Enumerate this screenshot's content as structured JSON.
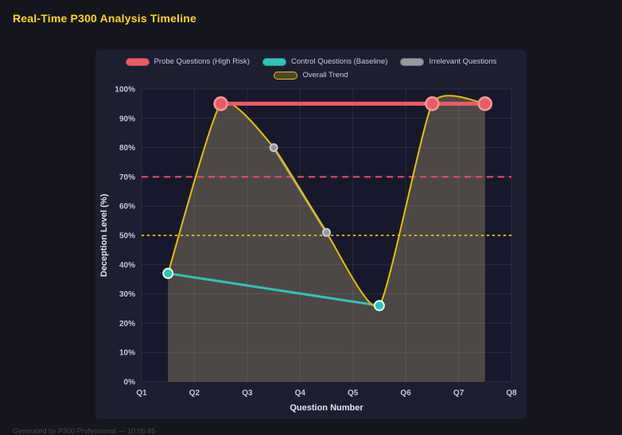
{
  "page": {
    "title": "Real-Time P300 Analysis Timeline",
    "title_color": "#ffd60a",
    "footer": "Generated by P300 Professional — 10:05:45"
  },
  "chart_data": {
    "type": "line",
    "title": "Real-Time P300 Analysis Timeline",
    "xlabel": "Question Number",
    "ylabel": "Deception Level (%)",
    "x_tick_labels": [
      "Q1",
      "Q2",
      "Q3",
      "Q4",
      "Q5",
      "Q6",
      "Q7",
      "Q8"
    ],
    "x_range": [
      1,
      8
    ],
    "ylim": [
      0,
      100
    ],
    "y_ticks": [
      0,
      10,
      20,
      30,
      40,
      50,
      60,
      70,
      80,
      90,
      100
    ],
    "y_tick_suffix": "%",
    "grid": true,
    "legend_position": "top-center",
    "plot_bg": "#18182c",
    "grid_color": "rgba(255,255,255,0.08)",
    "tick_color": "#c6c6d2",
    "axis_title_color": "#e3e3ec",
    "series": [
      {
        "id": "probe",
        "name": "Probe Questions (High Risk)",
        "color": "#e85c66",
        "line_width": 5,
        "marker_radius": 8,
        "marker_stroke": "#f29a9a",
        "smooth": false,
        "points": [
          [
            2.5,
            95
          ],
          [
            6.5,
            95
          ],
          [
            7.5,
            95
          ]
        ],
        "swatch": {
          "fill": "#e85c66",
          "border": "#b8434c"
        }
      },
      {
        "id": "control",
        "name": "Control Questions (Baseline)",
        "color": "#2ec4b6",
        "line_width": 3,
        "marker_radius": 6,
        "marker_stroke": "#e6fbf8",
        "smooth": false,
        "points": [
          [
            1.5,
            37
          ],
          [
            5.5,
            26
          ]
        ],
        "swatch": {
          "fill": "#2ec4b6",
          "border": "#1e9a8f"
        }
      },
      {
        "id": "irrelevant",
        "name": "Irrelevant Questions",
        "color": "#97979f",
        "line_width": 3,
        "marker_radius": 4.5,
        "marker_stroke": "#c9c9d2",
        "smooth": false,
        "points": [
          [
            3.5,
            80
          ],
          [
            4.5,
            51
          ]
        ],
        "swatch": {
          "fill": "#97979f",
          "border": "#70707a"
        }
      },
      {
        "id": "trend",
        "name": "Overall Trend",
        "color": "#e5c100",
        "line_width": 2,
        "marker_radius": 0,
        "marker_stroke": "none",
        "smooth": true,
        "fill": "rgba(222,205,140,0.27)",
        "points": [
          [
            1.5,
            37
          ],
          [
            2.5,
            95
          ],
          [
            3.5,
            80
          ],
          [
            4.5,
            51
          ],
          [
            5.5,
            26
          ],
          [
            6.5,
            95
          ],
          [
            7.5,
            95
          ]
        ],
        "swatch": {
          "fill": "#4a4630",
          "border": "#e5c100"
        }
      }
    ],
    "thresholds": [
      {
        "label": "high-risk-threshold-line",
        "value": 70,
        "color": "#ef4b6e",
        "dash": "8 6"
      },
      {
        "label": "baseline-threshold-line",
        "value": 50,
        "color": "#d8b400",
        "dash": "3 4"
      }
    ]
  }
}
